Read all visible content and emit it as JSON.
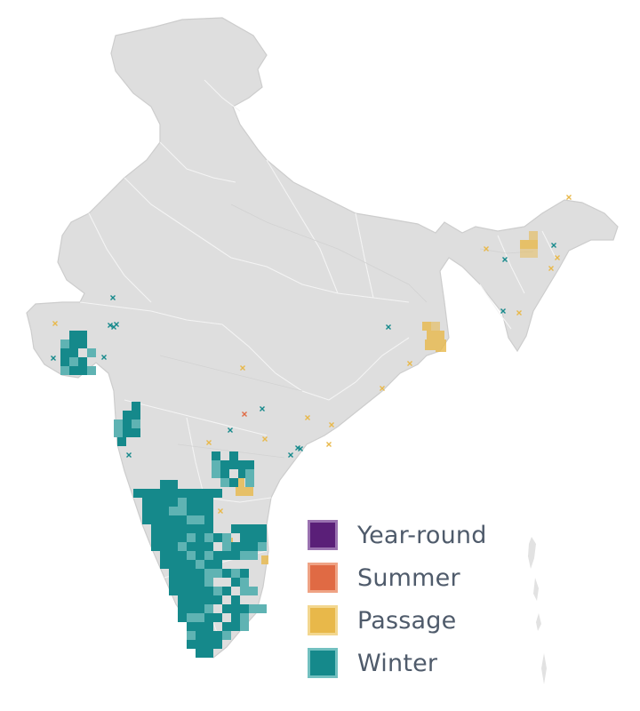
{
  "map": {
    "colors": {
      "land": "#dedede",
      "land_border": "#c9c9c9",
      "inner_border": "#f5f5f5",
      "year_round": "#5a1f78",
      "summer": "#e06a44",
      "passage": "#e8b84a",
      "winter": "#15898b",
      "winter_light": "#5fb3b3"
    }
  },
  "legend": {
    "items": [
      {
        "key": "year_round",
        "label": "Year-round",
        "fill": "#5a1f78",
        "border": "#9a72b0"
      },
      {
        "key": "summer",
        "label": "Summer",
        "fill": "#e06a44",
        "border": "#efa385"
      },
      {
        "key": "passage",
        "label": "Passage",
        "fill": "#e8b84a",
        "border": "#f3d78f"
      },
      {
        "key": "winter",
        "label": "Winter",
        "fill": "#15898b",
        "border": "#72c0c0"
      }
    ]
  }
}
